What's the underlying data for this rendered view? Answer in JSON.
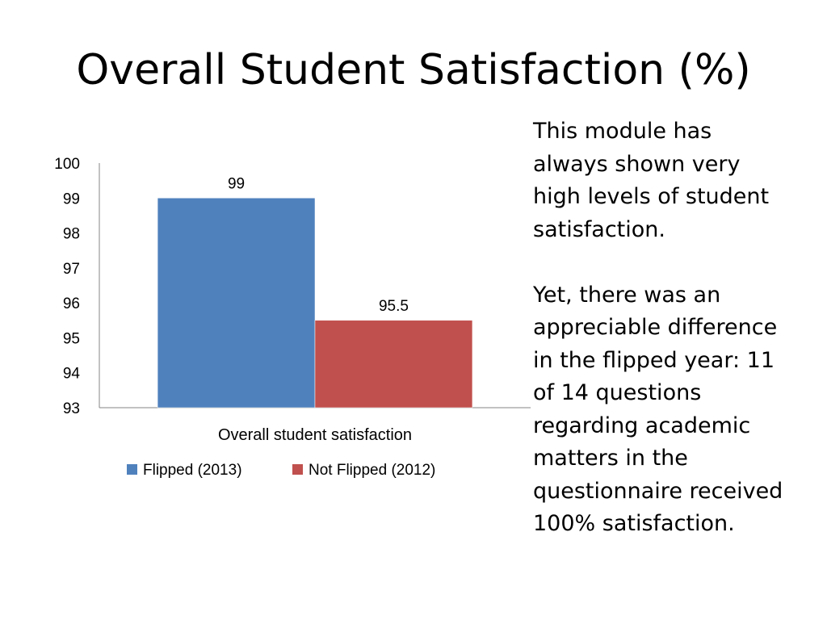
{
  "slide": {
    "title": "Overall Student Satisfaction (%)",
    "paragraphs": [
      "This module has always shown very high levels of student satisfaction.",
      "Yet, there was an appreciable difference in  the flipped year: 11 of 14 questions regarding academic matters in the questionnaire received 100% satisfaction."
    ]
  },
  "chart_data": {
    "type": "bar",
    "categories": [
      "Overall student satisfaction"
    ],
    "series": [
      {
        "name": "Flipped (2013)",
        "values": [
          99
        ],
        "color": "#4f81bd"
      },
      {
        "name": "Not Flipped (2012)",
        "values": [
          95.5
        ],
        "color": "#c0504d"
      }
    ],
    "data_labels": [
      "99",
      "95.5"
    ],
    "ylim": [
      93,
      100
    ],
    "yticks": [
      "93",
      "94",
      "95",
      "96",
      "97",
      "98",
      "99",
      "100"
    ],
    "grid": false,
    "legend": "bottom"
  }
}
